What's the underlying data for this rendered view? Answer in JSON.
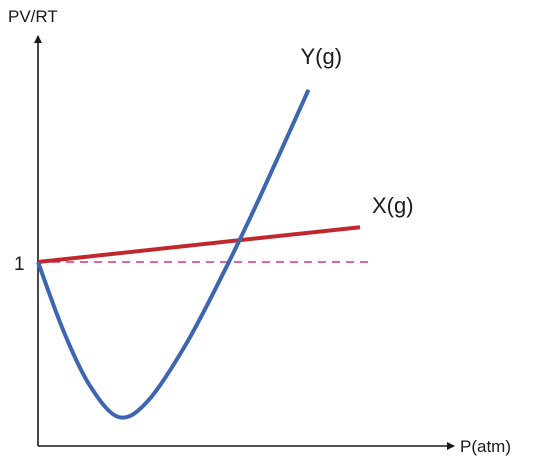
{
  "chart_data": {
    "type": "line",
    "title": "",
    "ylabel": "PV/RT",
    "xlabel": "P(atm)",
    "y_tick_labels": [
      "1"
    ],
    "grid": false,
    "reference_line": {
      "y": 1,
      "style": "dashed",
      "color": "#d63384"
    },
    "series": [
      {
        "name": "X(g)",
        "color": "#c0282e",
        "points": [
          [
            0,
            1.0
          ],
          [
            10,
            1.085
          ]
        ]
      },
      {
        "name": "Y(g)",
        "color": "#3d65b4",
        "points": [
          [
            0,
            1.0
          ],
          [
            0.8,
            0.83
          ],
          [
            1.6,
            0.7
          ],
          [
            2.5,
            0.622
          ],
          [
            3.4,
            0.66
          ],
          [
            4.6,
            0.8
          ],
          [
            5.8,
            0.98
          ],
          [
            6.9,
            1.16
          ],
          [
            8.4,
            1.42
          ]
        ]
      }
    ]
  }
}
